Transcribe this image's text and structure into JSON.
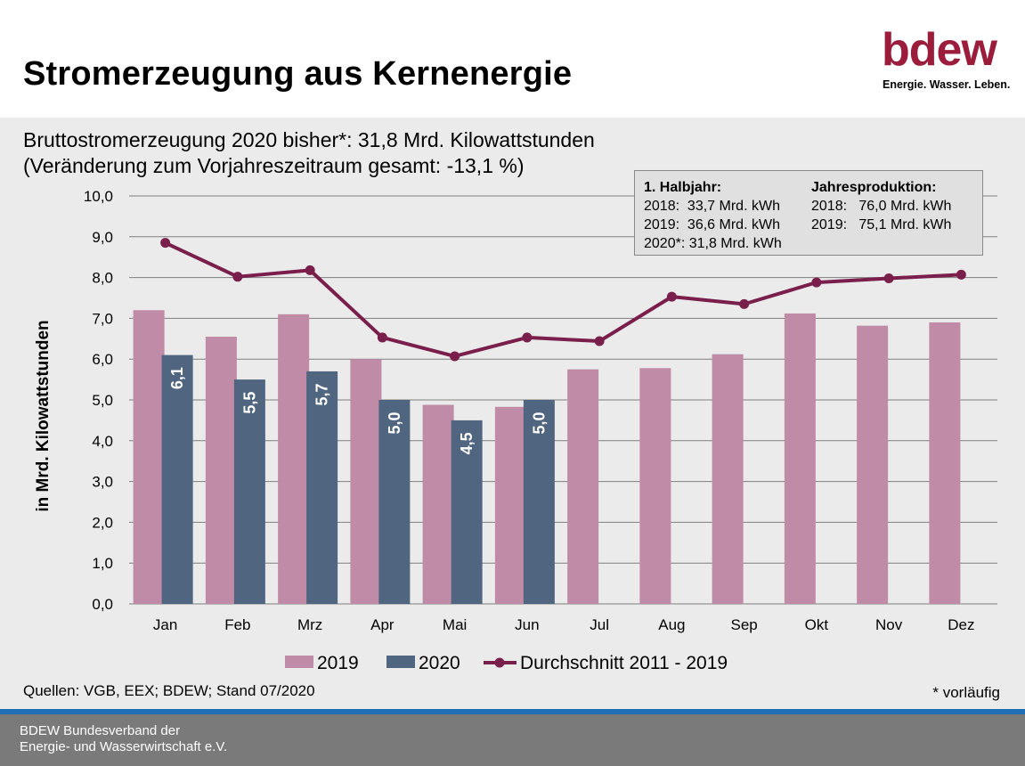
{
  "header": {
    "title": "Stromerzeugung aus Kernenergie",
    "logo_word": "bdew",
    "logo_tagline": "Energie. Wasser. Leben."
  },
  "subtitle": {
    "line1": "Bruttostromerzeugung 2020 bisher*: 31,8 Mrd. Kilowattstunden",
    "line2": "(Veränderung zum Vorjahreszeitraum gesamt: -13,1 %)"
  },
  "infobox": {
    "left_heading": "1. Halbjahr:",
    "left_rows": [
      "2018:  33,7 Mrd. kWh",
      "2019:  36,6 Mrd. kWh",
      "2020*: 31,8 Mrd. kWh"
    ],
    "right_heading": "Jahresproduktion:",
    "right_rows": [
      "2018:   76,0 Mrd. kWh",
      "2019:   75,1 Mrd. kWh"
    ]
  },
  "chart_data": {
    "type": "bar",
    "ylabel": "in Mrd. Kilowattstunden",
    "ylim": [
      0,
      10
    ],
    "yticks": [
      "0,0",
      "1,0",
      "2,0",
      "3,0",
      "4,0",
      "5,0",
      "6,0",
      "7,0",
      "8,0",
      "9,0",
      "10,0"
    ],
    "grid": true,
    "legend_position": "bottom",
    "categories": [
      "Jan",
      "Feb",
      "Mrz",
      "Apr",
      "Mai",
      "Jun",
      "Jul",
      "Aug",
      "Sep",
      "Okt",
      "Nov",
      "Dez"
    ],
    "series": [
      {
        "name": "2019",
        "type": "bar",
        "color": "#c08ba6",
        "values": [
          7.2,
          6.55,
          7.1,
          6.0,
          4.88,
          4.83,
          5.75,
          5.78,
          6.12,
          7.12,
          6.82,
          6.9
        ]
      },
      {
        "name": "2020",
        "type": "bar",
        "color": "#4f6580",
        "values": [
          6.1,
          5.5,
          5.7,
          5.0,
          4.5,
          5.0,
          null,
          null,
          null,
          null,
          null,
          null
        ],
        "data_labels": [
          "6,1",
          "5,5",
          "5,7",
          "5,0",
          "4,5",
          "5,0"
        ]
      },
      {
        "name": "Durchschnitt 2011 - 2019",
        "type": "line",
        "color": "#7a1f4b",
        "values": [
          8.85,
          8.02,
          8.18,
          6.53,
          6.07,
          6.53,
          6.44,
          7.53,
          7.35,
          7.88,
          7.98,
          8.07
        ]
      }
    ]
  },
  "sources": "Quellen: VGB, EEX; BDEW; Stand 07/2020",
  "note": "* vorläufig",
  "footer": {
    "line1": "BDEW Bundesverband der",
    "line2": "Energie- und Wasserwirtschaft e.V."
  }
}
